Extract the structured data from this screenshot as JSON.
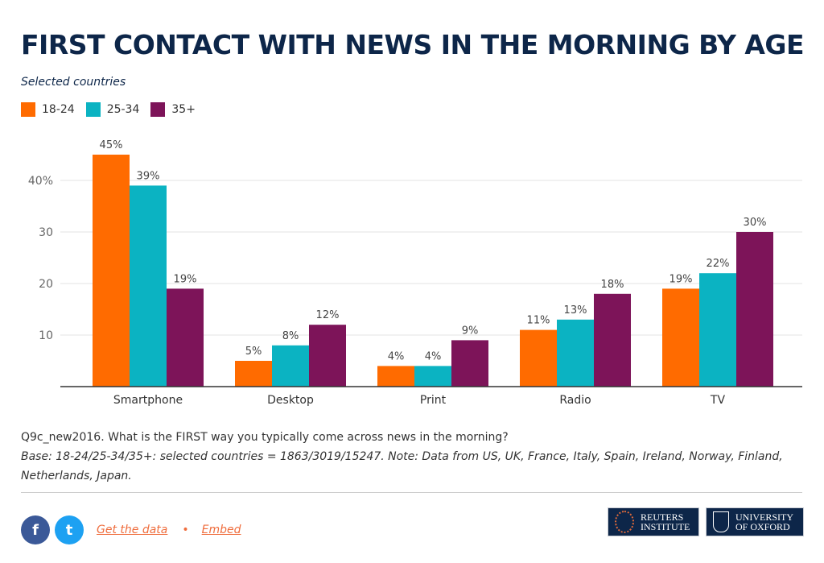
{
  "title": "FIRST CONTACT WITH NEWS IN THE MORNING BY AGE",
  "subtitle": "Selected countries",
  "chart_data": {
    "type": "bar",
    "title": "FIRST CONTACT WITH NEWS IN THE MORNING BY AGE",
    "categories": [
      "Smartphone",
      "Desktop",
      "Print",
      "Radio",
      "TV"
    ],
    "series": [
      {
        "name": "18-24",
        "color": "#ff6b00",
        "values": [
          45,
          5,
          4,
          11,
          19
        ]
      },
      {
        "name": "25-34",
        "color": "#0bb3c2",
        "values": [
          39,
          8,
          4,
          13,
          22
        ]
      },
      {
        "name": "35+",
        "color": "#7d1459",
        "values": [
          19,
          12,
          9,
          18,
          30
        ]
      }
    ],
    "yticks": [
      10,
      20,
      30,
      40
    ],
    "ytick_labels": [
      "10",
      "20",
      "30",
      "40%"
    ],
    "ylim": [
      0,
      47
    ],
    "grid": true,
    "legend": "top-left",
    "xlabel": "",
    "ylabel": ""
  },
  "notes": {
    "question": "Q9c_new2016. What is the FIRST way you typically come across news in the morning?",
    "base": "Base: 18-24/25-34/35+: selected countries = 1863/3019/15247. Note: Data from US, UK, France, Italy, Spain, Ireland, Norway, Finland, Netherlands, Japan."
  },
  "footer": {
    "facebook": "f",
    "twitter": "t",
    "get_data": "Get the data",
    "separator": "•",
    "embed": "Embed",
    "logo_reuters": "REUTERS INSTITUTE",
    "logo_oxford": "UNIVERSITY OF OXFORD"
  }
}
